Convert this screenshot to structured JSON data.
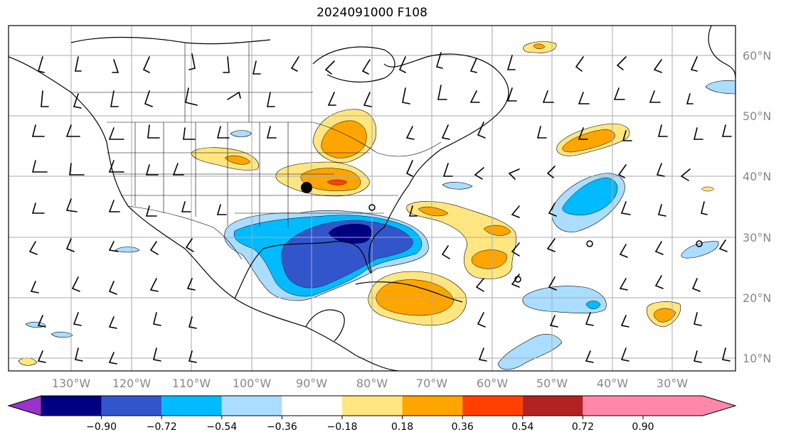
{
  "title": "2024091000 F108",
  "latitude_labels": [
    "60°N",
    "50°N",
    "40°N",
    "30°N",
    "20°N",
    "10°N"
  ],
  "longitude_labels": [
    "130°W",
    "120°W",
    "110°W",
    "100°W",
    "90°W",
    "80°W",
    "70°W",
    "60°W",
    "50°W",
    "40°W",
    "30°W"
  ],
  "colorbar": {
    "tick_labels": [
      "−0.90",
      "−0.72",
      "−0.54",
      "−0.36",
      "−0.18",
      "0.18",
      "0.36",
      "0.54",
      "0.72",
      "0.90"
    ],
    "colors": [
      "#9933cc",
      "#000080",
      "#3355cc",
      "#00bbff",
      "#aaddff",
      "#ffffff",
      "#ffe680",
      "#ffa500",
      "#ff4000",
      "#b22222",
      "#ff88aa"
    ]
  }
}
